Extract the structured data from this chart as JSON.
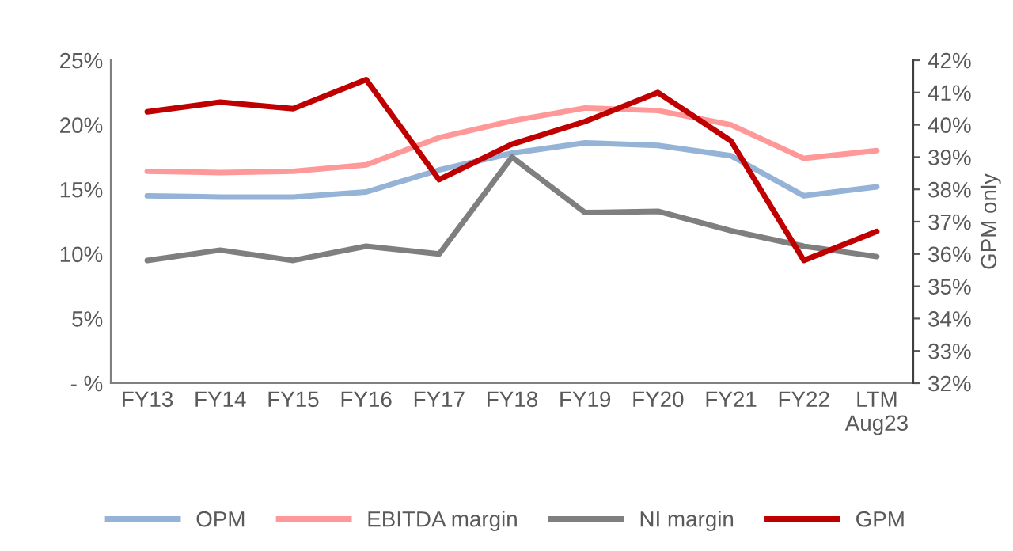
{
  "chart_data": {
    "type": "line",
    "categories": [
      "FY13",
      "FY14",
      "FY15",
      "FY16",
      "FY17",
      "FY18",
      "FY19",
      "FY20",
      "FY21",
      "FY22",
      "LTM\nAug23"
    ],
    "series": [
      {
        "name": "OPM",
        "color": "#95b3d7",
        "values": [
          14.5,
          14.4,
          14.4,
          14.8,
          16.5,
          17.8,
          18.6,
          18.4,
          17.6,
          14.5,
          15.2
        ]
      },
      {
        "name": "EBITDA margin",
        "color": "#ff9999",
        "values": [
          16.4,
          16.3,
          16.4,
          16.9,
          19.0,
          20.3,
          21.3,
          21.1,
          20.0,
          17.4,
          18.0
        ]
      },
      {
        "name": "NI margin",
        "color": "#7f7f7f",
        "values": [
          9.5,
          10.3,
          9.5,
          10.6,
          10.0,
          17.5,
          13.2,
          13.3,
          11.8,
          10.6,
          9.8
        ]
      },
      {
        "name": "GPM",
        "color": "#c00000",
        "axis": "y2",
        "values": [
          40.4,
          40.7,
          40.5,
          41.4,
          38.3,
          39.4,
          40.1,
          41.0,
          39.5,
          35.8,
          36.7
        ]
      }
    ],
    "y2label": "GPM only",
    "ylim": [
      0,
      25
    ],
    "yticks": [
      {
        "value": 0,
        "label": "- %"
      },
      {
        "value": 5,
        "label": "5%"
      },
      {
        "value": 10,
        "label": "10%"
      },
      {
        "value": 15,
        "label": "15%"
      },
      {
        "value": 20,
        "label": "20%"
      },
      {
        "value": 25,
        "label": "25%"
      }
    ],
    "y2lim": [
      32,
      42
    ],
    "y2ticks": [
      {
        "value": 32,
        "label": "32%"
      },
      {
        "value": 33,
        "label": "33%"
      },
      {
        "value": 34,
        "label": "34%"
      },
      {
        "value": 35,
        "label": "35%"
      },
      {
        "value": 36,
        "label": "36%"
      },
      {
        "value": 37,
        "label": "37%"
      },
      {
        "value": 38,
        "label": "38%"
      },
      {
        "value": 39,
        "label": "39%"
      },
      {
        "value": 40,
        "label": "40%"
      },
      {
        "value": 41,
        "label": "41%"
      },
      {
        "value": 42,
        "label": "42%"
      }
    ],
    "grid": false,
    "legend": "bottom",
    "marker": "none",
    "line_style": "solid"
  }
}
